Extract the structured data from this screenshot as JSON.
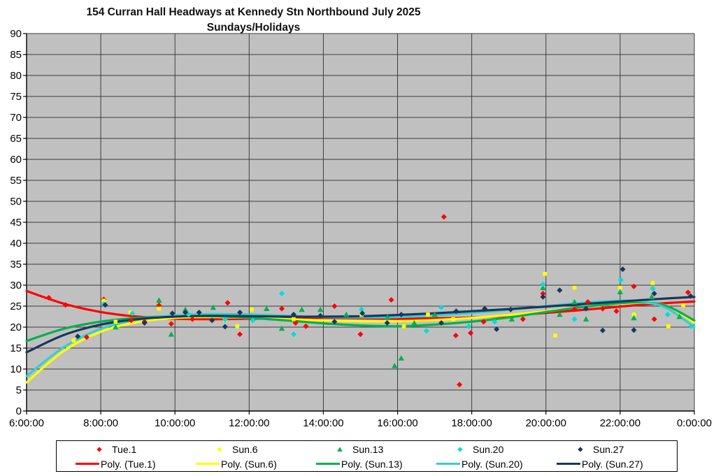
{
  "chart_data": {
    "type": "scatter",
    "title_line1": "154 Curran Hall Headways at Kennedy Stn Northbound July 2025",
    "title_line2": "Sundays/Holidays",
    "x_axis": {
      "tick_labels": [
        "6:00:00",
        "8:00:00",
        "10:00:00",
        "12:00:00",
        "14:00:00",
        "16:00:00",
        "18:00:00",
        "20:00:00",
        "22:00:00",
        "0:00:00"
      ],
      "tick_hours": [
        6,
        8,
        10,
        12,
        14,
        16,
        18,
        20,
        22,
        24
      ],
      "range_hours": [
        6,
        24
      ],
      "grid": true
    },
    "y_axis": {
      "min": 0,
      "max": 90,
      "step": 5,
      "tick_labels": [
        0,
        5,
        10,
        15,
        20,
        25,
        30,
        35,
        40,
        45,
        50,
        55,
        60,
        65,
        70,
        75,
        80,
        85,
        90
      ],
      "grid": true
    },
    "colors": {
      "plot_bg": "#C0C0C0",
      "grid": "#3d3d3d",
      "axis": "#000000",
      "legend_border": "#000000"
    },
    "legend_position": "bottom",
    "series": [
      {
        "name": "Tue.1",
        "trend_label": "Poly. (Tue.1)",
        "marker": "diamond",
        "marker_color": "#FF0000",
        "line_color": "#FF0000",
        "points": [
          [
            6.6,
            27.0
          ],
          [
            7.05,
            25.3
          ],
          [
            7.62,
            17.6
          ],
          [
            8.08,
            26.6
          ],
          [
            8.82,
            21.6
          ],
          [
            9.18,
            21.3
          ],
          [
            9.57,
            25.2
          ],
          [
            9.9,
            20.8
          ],
          [
            10.47,
            21.9
          ],
          [
            11.42,
            25.8
          ],
          [
            11.75,
            18.3
          ],
          [
            12.88,
            24.4
          ],
          [
            13.25,
            21.0
          ],
          [
            13.53,
            20.2
          ],
          [
            14.3,
            25.0
          ],
          [
            15.0,
            18.3
          ],
          [
            15.83,
            26.5
          ],
          [
            17.25,
            46.3
          ],
          [
            17.57,
            18.0
          ],
          [
            17.67,
            6.3
          ],
          [
            17.97,
            18.6
          ],
          [
            18.32,
            21.3
          ],
          [
            19.38,
            21.9
          ],
          [
            19.92,
            28.0
          ],
          [
            20.77,
            24.2
          ],
          [
            21.13,
            26.0
          ],
          [
            21.53,
            24.4
          ],
          [
            21.9,
            23.8
          ],
          [
            22.37,
            29.7
          ],
          [
            22.92,
            21.9
          ],
          [
            23.83,
            28.3
          ]
        ],
        "trend": [
          [
            6,
            28.6
          ],
          [
            7,
            25.6
          ],
          [
            8,
            23.6
          ],
          [
            9,
            22.5
          ],
          [
            10,
            22.0
          ],
          [
            11,
            21.9
          ],
          [
            12,
            22.0
          ],
          [
            13,
            22.1
          ],
          [
            14,
            22.2
          ],
          [
            15,
            22.1
          ],
          [
            16,
            22.0
          ],
          [
            17,
            22.1
          ],
          [
            18,
            22.3
          ],
          [
            19,
            22.7
          ],
          [
            20,
            23.4
          ],
          [
            21,
            24.1
          ],
          [
            22,
            24.9
          ],
          [
            23,
            25.6
          ],
          [
            24,
            26.1
          ]
        ]
      },
      {
        "name": "Sun.6",
        "trend_label": "Poly. (Sun.6)",
        "marker": "square",
        "marker_color": "#FFFF00",
        "line_color": "#FFFF00",
        "points": [
          [
            7.27,
            16.8
          ],
          [
            8.08,
            26.3
          ],
          [
            8.4,
            21.3
          ],
          [
            8.8,
            23.5
          ],
          [
            9.57,
            24.4
          ],
          [
            11.35,
            21.7
          ],
          [
            11.68,
            20.2
          ],
          [
            12.07,
            24.2
          ],
          [
            13.2,
            21.9
          ],
          [
            15.03,
            22.9
          ],
          [
            16.17,
            20.2
          ],
          [
            16.82,
            23.0
          ],
          [
            17.5,
            21.9
          ],
          [
            19.97,
            32.7
          ],
          [
            20.25,
            18.0
          ],
          [
            20.77,
            29.4
          ],
          [
            22.0,
            29.4
          ],
          [
            22.37,
            23.0
          ],
          [
            22.88,
            30.5
          ],
          [
            23.3,
            20.2
          ],
          [
            23.7,
            25.2
          ]
        ],
        "trend": [
          [
            6,
            6.8
          ],
          [
            7,
            14.3
          ],
          [
            8,
            18.9
          ],
          [
            9,
            21.2
          ],
          [
            10,
            22.2
          ],
          [
            11,
            22.4
          ],
          [
            12,
            22.2
          ],
          [
            13,
            21.9
          ],
          [
            14,
            21.6
          ],
          [
            15,
            21.4
          ],
          [
            16,
            21.4
          ],
          [
            17,
            21.7
          ],
          [
            18,
            22.2
          ],
          [
            19,
            22.9
          ],
          [
            20,
            23.8
          ],
          [
            21,
            24.8
          ],
          [
            22,
            25.6
          ],
          [
            22.7,
            25.8
          ],
          [
            23.3,
            24.9
          ],
          [
            24,
            21.1
          ]
        ]
      },
      {
        "name": "Sun.13",
        "trend_label": "Poly. (Sun.13)",
        "marker": "triangle",
        "marker_color": "#00B050",
        "line_color": "#00B050",
        "points": [
          [
            8.4,
            20.0
          ],
          [
            9.57,
            26.4
          ],
          [
            9.9,
            18.3
          ],
          [
            10.28,
            24.2
          ],
          [
            11.03,
            24.7
          ],
          [
            12.47,
            24.4
          ],
          [
            12.88,
            19.7
          ],
          [
            13.42,
            24.2
          ],
          [
            13.92,
            24.2
          ],
          [
            14.62,
            23.0
          ],
          [
            15.73,
            22.4
          ],
          [
            15.92,
            10.8
          ],
          [
            16.1,
            12.6
          ],
          [
            16.45,
            21.0
          ],
          [
            17.0,
            23.0
          ],
          [
            19.08,
            21.9
          ],
          [
            19.92,
            29.4
          ],
          [
            20.37,
            23.0
          ],
          [
            20.77,
            26.0
          ],
          [
            21.08,
            21.9
          ],
          [
            22.0,
            28.4
          ],
          [
            22.37,
            22.2
          ],
          [
            22.85,
            27.2
          ],
          [
            23.6,
            22.5
          ]
        ],
        "trend": [
          [
            6,
            16.7
          ],
          [
            7,
            19.6
          ],
          [
            8,
            21.3
          ],
          [
            9,
            22.2
          ],
          [
            10,
            22.6
          ],
          [
            11,
            22.6
          ],
          [
            12,
            22.2
          ],
          [
            13,
            21.6
          ],
          [
            14,
            20.9
          ],
          [
            15,
            20.4
          ],
          [
            16,
            20.2
          ],
          [
            17,
            20.6
          ],
          [
            18,
            21.3
          ],
          [
            19,
            22.3
          ],
          [
            20,
            23.6
          ],
          [
            21,
            24.8
          ],
          [
            22,
            25.7
          ],
          [
            22.7,
            25.9
          ],
          [
            23.3,
            24.9
          ],
          [
            24,
            21.6
          ]
        ]
      },
      {
        "name": "Sun.20",
        "trend_label": "Poly. (Sun.20)",
        "marker": "diamond",
        "marker_color": "#00DCDC",
        "line_color": "#37CDCD",
        "points": [
          [
            8.08,
            25.5
          ],
          [
            8.85,
            23.3
          ],
          [
            10.37,
            23.0
          ],
          [
            11.35,
            21.8
          ],
          [
            12.1,
            21.6
          ],
          [
            12.88,
            28.0
          ],
          [
            13.2,
            18.3
          ],
          [
            15.03,
            24.2
          ],
          [
            16.78,
            19.1
          ],
          [
            17.18,
            24.7
          ],
          [
            17.92,
            20.2
          ],
          [
            18.62,
            21.3
          ],
          [
            19.92,
            30.2
          ],
          [
            20.77,
            21.9
          ],
          [
            22.02,
            31.2
          ],
          [
            22.88,
            29.2
          ],
          [
            23.28,
            23.0
          ],
          [
            23.92,
            20.2
          ]
        ],
        "trend": [
          [
            6,
            8.3
          ],
          [
            7,
            15.2
          ],
          [
            8,
            19.6
          ],
          [
            9,
            21.8
          ],
          [
            10,
            22.8
          ],
          [
            11,
            23.1
          ],
          [
            12,
            23.0
          ],
          [
            13,
            22.7
          ],
          [
            14,
            22.4
          ],
          [
            15,
            22.3
          ],
          [
            16,
            22.4
          ],
          [
            17,
            22.8
          ],
          [
            18,
            23.4
          ],
          [
            19,
            24.1
          ],
          [
            20,
            25.0
          ],
          [
            21,
            25.8
          ],
          [
            22,
            26.3
          ],
          [
            22.7,
            26.0
          ],
          [
            23.3,
            24.3
          ],
          [
            24,
            20.0
          ]
        ]
      },
      {
        "name": "Sun.27",
        "trend_label": "Poly. (Sun.27)",
        "marker": "diamond",
        "marker_color": "#17375E",
        "line_color": "#17375E",
        "points": [
          [
            7.38,
            17.8
          ],
          [
            8.12,
            25.3
          ],
          [
            9.18,
            21.0
          ],
          [
            9.93,
            23.3
          ],
          [
            10.28,
            23.5
          ],
          [
            10.65,
            23.5
          ],
          [
            11.0,
            21.6
          ],
          [
            11.35,
            20.1
          ],
          [
            11.75,
            23.5
          ],
          [
            13.2,
            23.0
          ],
          [
            13.92,
            22.7
          ],
          [
            14.3,
            21.3
          ],
          [
            15.05,
            23.3
          ],
          [
            15.72,
            21.0
          ],
          [
            16.1,
            23.0
          ],
          [
            17.18,
            21.0
          ],
          [
            17.58,
            23.8
          ],
          [
            18.35,
            24.4
          ],
          [
            18.67,
            19.5
          ],
          [
            19.05,
            24.2
          ],
          [
            19.92,
            27.2
          ],
          [
            20.37,
            28.8
          ],
          [
            21.08,
            24.4
          ],
          [
            21.53,
            19.2
          ],
          [
            22.07,
            33.8
          ],
          [
            22.37,
            19.3
          ],
          [
            22.92,
            28.0
          ],
          [
            23.9,
            27.4
          ]
        ],
        "trend": [
          [
            6,
            14.0
          ],
          [
            7,
            18.1
          ],
          [
            8,
            20.6
          ],
          [
            9,
            21.9
          ],
          [
            10,
            22.5
          ],
          [
            11,
            22.7
          ],
          [
            12,
            22.6
          ],
          [
            13,
            22.5
          ],
          [
            14,
            22.5
          ],
          [
            15,
            22.6
          ],
          [
            16,
            22.9
          ],
          [
            17,
            23.3
          ],
          [
            18,
            23.8
          ],
          [
            19,
            24.3
          ],
          [
            20,
            24.9
          ],
          [
            21,
            25.5
          ],
          [
            22,
            26.1
          ],
          [
            23,
            26.7
          ],
          [
            24,
            27.2
          ]
        ]
      }
    ]
  }
}
